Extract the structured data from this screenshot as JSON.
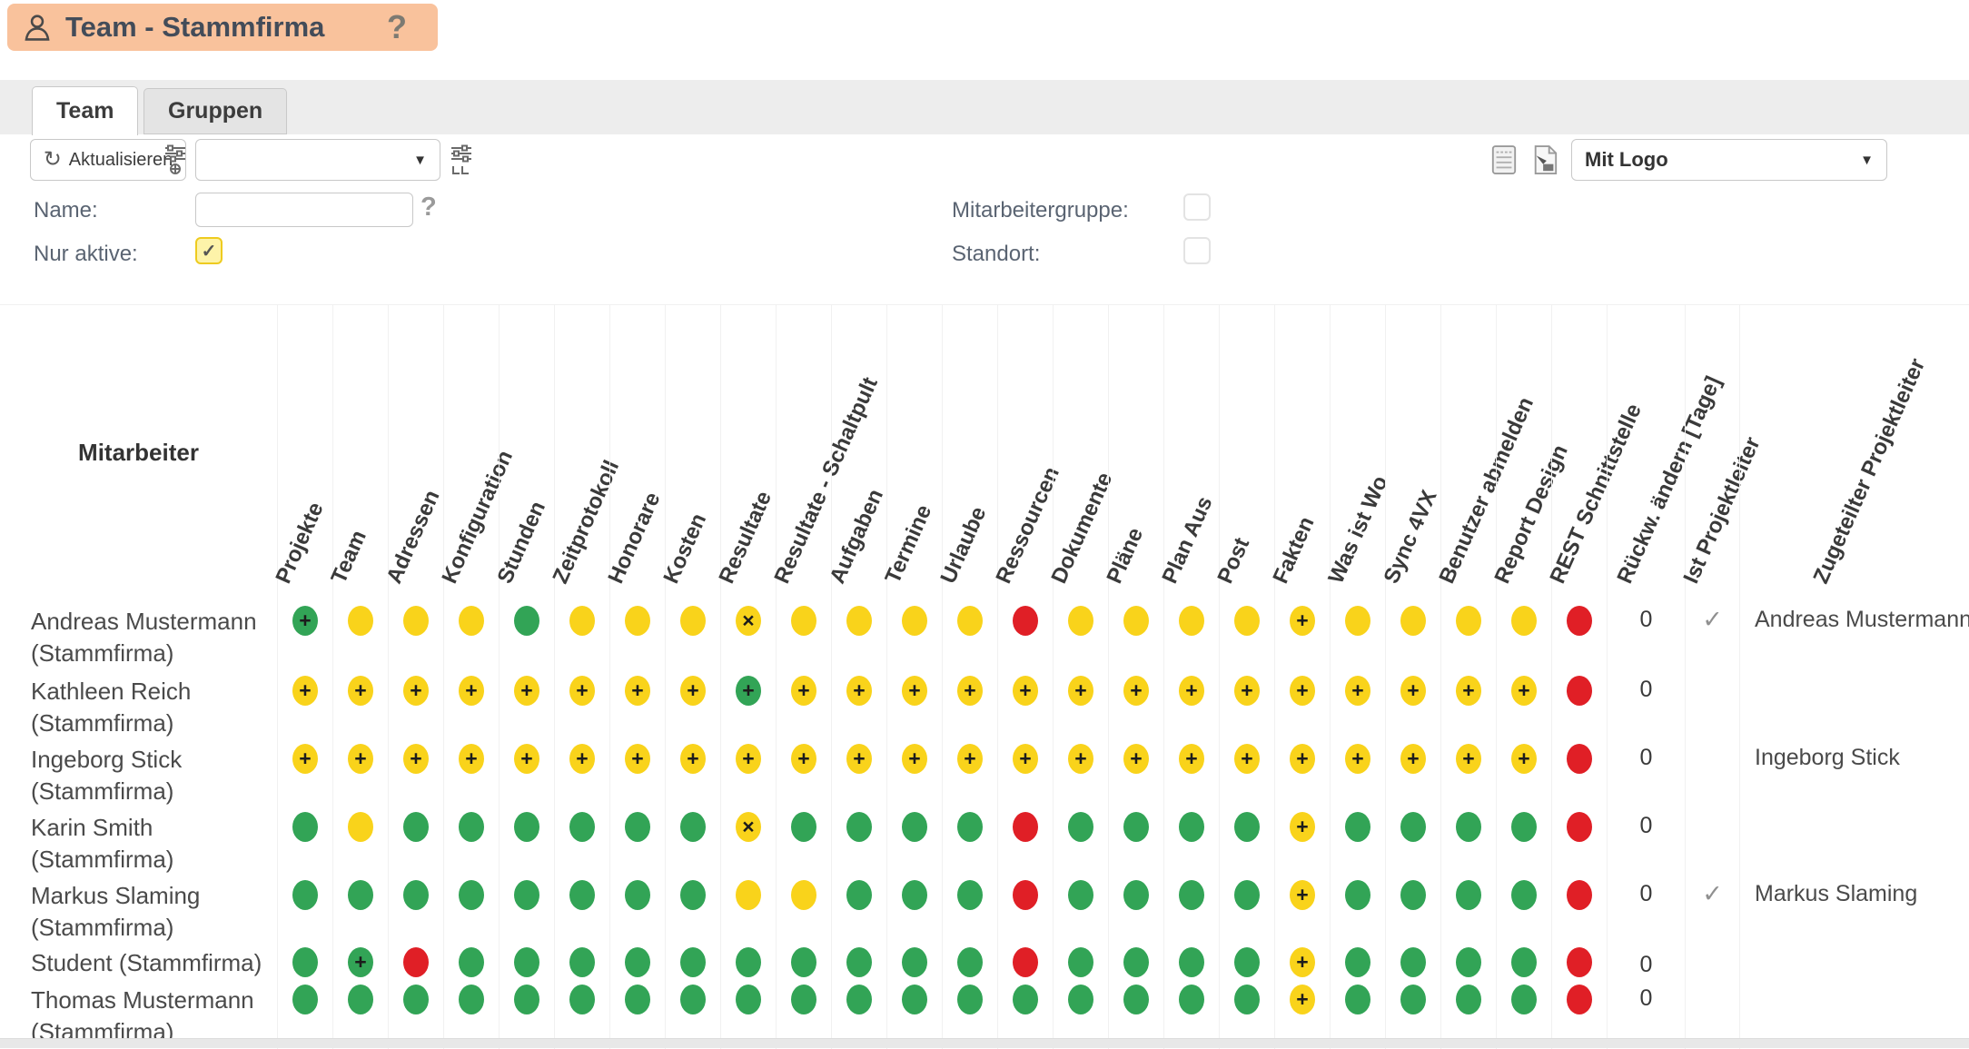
{
  "window": {
    "title": "Team - Stammfirma"
  },
  "tabs": [
    {
      "label": "Team",
      "active": true
    },
    {
      "label": "Gruppen",
      "active": false
    }
  ],
  "toolbar": {
    "refresh_label": "Aktualisieren",
    "view_dropdown_value": "",
    "logo_dropdown_value": "Mit Logo"
  },
  "filters": {
    "name_label": "Name:",
    "name_value": "",
    "nur_aktive_label": "Nur aktive:",
    "nur_aktive_checked": true,
    "mitarbeitergruppe_label": "Mitarbeitergruppe:",
    "mitarbeitergruppe_checked": false,
    "standort_label": "Standort:",
    "standort_checked": false
  },
  "table": {
    "row_header": "Mitarbeiter",
    "permission_columns": [
      "Projekte",
      "Team",
      "Adressen",
      "Konfiguration",
      "Stunden",
      "Zeitprotokoll",
      "Honorare",
      "Kosten",
      "Resultate",
      "Resultate - Schaltpult",
      "Aufgaben",
      "Termine",
      "Urlaube",
      "Ressourcen",
      "Dokumente",
      "Pläne",
      "Plan Aus",
      "Post",
      "Fakten",
      "Was ist Wo",
      "Sync 4VX",
      "Benutzer abmelden",
      "Report Design",
      "REST Schnittstelle"
    ],
    "extra_columns": [
      "Rückw. ändern [Tage]",
      "Ist Projektleiter",
      "Zugeteilter Projektleiter"
    ],
    "dot_legend": {
      "g": "green full access",
      "y": "yellow limited access",
      "r": "red no access",
      "+": "plus marker",
      "x": "cross marker"
    },
    "rows": [
      {
        "line1": "Andreas Mustermann",
        "line2": "(Stammfirma)",
        "dots": [
          "g+",
          "y",
          "y",
          "y",
          "g",
          "y",
          "y",
          "y",
          "yx",
          "y",
          "y",
          "y",
          "y",
          "r",
          "y",
          "y",
          "y",
          "y",
          "y+",
          "y",
          "y",
          "y",
          "y",
          "r"
        ],
        "rueckw": "0",
        "ist_projektleiter": true,
        "zugeteilter": "Andreas Mustermann"
      },
      {
        "line1": "Kathleen Reich",
        "line2": "(Stammfirma)",
        "dots": [
          "y+",
          "y+",
          "y+",
          "y+",
          "y+",
          "y+",
          "y+",
          "y+",
          "g+",
          "y+",
          "y+",
          "y+",
          "y+",
          "y+",
          "y+",
          "y+",
          "y+",
          "y+",
          "y+",
          "y+",
          "y+",
          "y+",
          "y+",
          "r"
        ],
        "rueckw": "0",
        "ist_projektleiter": false,
        "zugeteilter": ""
      },
      {
        "line1": "Ingeborg Stick",
        "line2": "(Stammfirma)",
        "dots": [
          "y+",
          "y+",
          "y+",
          "y+",
          "y+",
          "y+",
          "y+",
          "y+",
          "y+",
          "y+",
          "y+",
          "y+",
          "y+",
          "y+",
          "y+",
          "y+",
          "y+",
          "y+",
          "y+",
          "y+",
          "y+",
          "y+",
          "y+",
          "r"
        ],
        "rueckw": "0",
        "ist_projektleiter": false,
        "zugeteilter": "Ingeborg Stick"
      },
      {
        "line1": "Karin Smith",
        "line2": "(Stammfirma)",
        "dots": [
          "g",
          "y",
          "g",
          "g",
          "g",
          "g",
          "g",
          "g",
          "yx",
          "g",
          "g",
          "g",
          "g",
          "r",
          "g",
          "g",
          "g",
          "g",
          "y+",
          "g",
          "g",
          "g",
          "g",
          "r"
        ],
        "rueckw": "0",
        "ist_projektleiter": false,
        "zugeteilter": ""
      },
      {
        "line1": "Markus Slaming",
        "line2": "(Stammfirma)",
        "dots": [
          "g",
          "g",
          "g",
          "g",
          "g",
          "g",
          "g",
          "g",
          "y",
          "y",
          "g",
          "g",
          "g",
          "r",
          "g",
          "g",
          "g",
          "g",
          "y+",
          "g",
          "g",
          "g",
          "g",
          "r"
        ],
        "rueckw": "0",
        "ist_projektleiter": true,
        "zugeteilter": "Markus Slaming"
      },
      {
        "line1": "Student (Stammfirma)",
        "line2": "",
        "dots": [
          "g",
          "g+",
          "r",
          "g",
          "g",
          "g",
          "g",
          "g",
          "g",
          "g",
          "g",
          "g",
          "g",
          "r",
          "g",
          "g",
          "g",
          "g",
          "y+",
          "g",
          "g",
          "g",
          "g",
          "r"
        ],
        "rueckw": "0",
        "ist_projektleiter": false,
        "zugeteilter": ""
      },
      {
        "line1": "Thomas Mustermann",
        "line2": "(Stammfirma)",
        "dots": [
          "g",
          "g",
          "g",
          "g",
          "g",
          "g",
          "g",
          "g",
          "g",
          "g",
          "g",
          "g",
          "g",
          "g",
          "g",
          "g",
          "g",
          "g",
          "y+",
          "g",
          "g",
          "g",
          "g",
          "r"
        ],
        "rueckw": "0",
        "ist_projektleiter": false,
        "zugeteilter": ""
      }
    ]
  },
  "colors": {
    "accent_titlebar": "#f9c29c",
    "dot_green": "#32a456",
    "dot_yellow": "#f9d31b",
    "dot_red": "#e01f26"
  },
  "glyphs": {
    "help": "?",
    "caret_down": "▼",
    "refresh": "↻",
    "check": "✓"
  }
}
